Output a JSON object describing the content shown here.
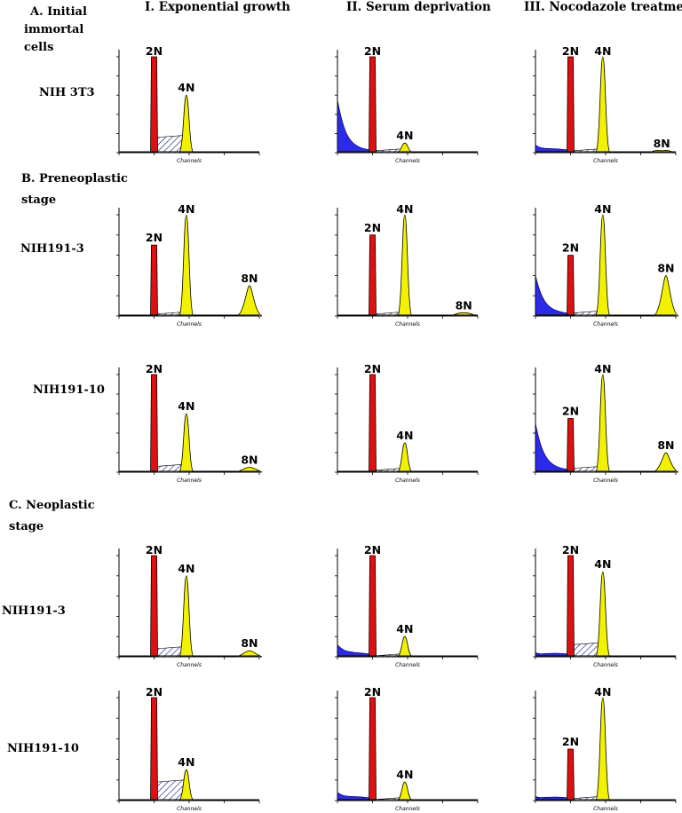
{
  "column_headers": [
    "I. Exponential growth",
    "II. Serum deprivation",
    "III. Nocodazole treatmen"
  ],
  "sections": [
    {
      "lines": [
        "A. Initial",
        "immortal",
        "cells"
      ]
    },
    {
      "lines": [
        "B. Preneoplastic",
        "stage"
      ]
    },
    {
      "lines": [
        "C. Neoplastic",
        "stage"
      ]
    }
  ],
  "row_labels": [
    "NIH 3T3",
    "NIH191-3",
    "NIH191-10",
    "NIH191-3",
    "NIH191-10"
  ],
  "axis_label": "Channels",
  "colors": {
    "2N": "#e01010",
    "4N": "#f2f200",
    "8N": "#f2f200",
    "debris": "#2a2ae8",
    "sphase": "#1a1a8a",
    "outline": "#000000"
  },
  "chart_data": [
    {
      "type": "area",
      "row": 0,
      "col": 0,
      "peaks": [
        {
          "label": "2N",
          "pos": 0.25,
          "height": 1.0
        },
        {
          "label": "4N",
          "pos": 0.48,
          "height": 0.6
        }
      ],
      "debris": 0,
      "sphase": 0.16
    },
    {
      "type": "area",
      "row": 0,
      "col": 1,
      "peaks": [
        {
          "label": "2N",
          "pos": 0.25,
          "height": 1.0
        },
        {
          "label": "4N",
          "pos": 0.48,
          "height": 0.1
        }
      ],
      "debris": 0.55,
      "sphase": 0.02
    },
    {
      "type": "area",
      "row": 0,
      "col": 2,
      "peaks": [
        {
          "label": "2N",
          "pos": 0.25,
          "height": 1.0
        },
        {
          "label": "4N",
          "pos": 0.48,
          "height": 1.0
        },
        {
          "label": "8N",
          "pos": 0.9,
          "height": 0.02
        }
      ],
      "debris": 0.08,
      "sphase": 0.02
    },
    {
      "type": "area",
      "row": 1,
      "col": 0,
      "peaks": [
        {
          "label": "2N",
          "pos": 0.25,
          "height": 0.7
        },
        {
          "label": "4N",
          "pos": 0.48,
          "height": 1.0
        },
        {
          "label": "8N",
          "pos": 0.93,
          "height": 0.3
        }
      ],
      "debris": 0,
      "sphase": 0.02
    },
    {
      "type": "area",
      "row": 1,
      "col": 1,
      "peaks": [
        {
          "label": "2N",
          "pos": 0.25,
          "height": 0.8
        },
        {
          "label": "4N",
          "pos": 0.48,
          "height": 1.0
        },
        {
          "label": "8N",
          "pos": 0.9,
          "height": 0.03
        }
      ],
      "debris": 0,
      "sphase": 0.02
    },
    {
      "type": "area",
      "row": 1,
      "col": 2,
      "peaks": [
        {
          "label": "2N",
          "pos": 0.25,
          "height": 0.6
        },
        {
          "label": "4N",
          "pos": 0.48,
          "height": 1.0
        },
        {
          "label": "8N",
          "pos": 0.93,
          "height": 0.4
        }
      ],
      "debris": 0.4,
      "sphase": 0.03
    },
    {
      "type": "area",
      "row": 2,
      "col": 0,
      "peaks": [
        {
          "label": "2N",
          "pos": 0.25,
          "height": 1.0
        },
        {
          "label": "4N",
          "pos": 0.48,
          "height": 0.6
        },
        {
          "label": "8N",
          "pos": 0.93,
          "height": 0.05
        }
      ],
      "debris": 0,
      "sphase": 0.06
    },
    {
      "type": "area",
      "row": 2,
      "col": 1,
      "peaks": [
        {
          "label": "2N",
          "pos": 0.25,
          "height": 1.0
        },
        {
          "label": "4N",
          "pos": 0.48,
          "height": 0.3
        }
      ],
      "debris": 0,
      "sphase": 0.02
    },
    {
      "type": "area",
      "row": 2,
      "col": 2,
      "peaks": [
        {
          "label": "2N",
          "pos": 0.25,
          "height": 0.55
        },
        {
          "label": "4N",
          "pos": 0.48,
          "height": 1.0
        },
        {
          "label": "8N",
          "pos": 0.93,
          "height": 0.2
        }
      ],
      "debris": 0.5,
      "sphase": 0.04
    },
    {
      "type": "area",
      "row": 3,
      "col": 0,
      "peaks": [
        {
          "label": "2N",
          "pos": 0.25,
          "height": 1.0
        },
        {
          "label": "4N",
          "pos": 0.48,
          "height": 0.8
        },
        {
          "label": "8N",
          "pos": 0.93,
          "height": 0.06
        }
      ],
      "debris": 0,
      "sphase": 0.08
    },
    {
      "type": "area",
      "row": 3,
      "col": 1,
      "peaks": [
        {
          "label": "2N",
          "pos": 0.25,
          "height": 1.0
        },
        {
          "label": "4N",
          "pos": 0.48,
          "height": 0.2
        }
      ],
      "debris": 0.12,
      "sphase": 0.01
    },
    {
      "type": "area",
      "row": 3,
      "col": 2,
      "peaks": [
        {
          "label": "2N",
          "pos": 0.25,
          "height": 1.0
        },
        {
          "label": "4N",
          "pos": 0.48,
          "height": 0.84
        }
      ],
      "debris": 0.04,
      "sphase": 0.12
    },
    {
      "type": "area",
      "row": 4,
      "col": 0,
      "peaks": [
        {
          "label": "2N",
          "pos": 0.25,
          "height": 1.0
        },
        {
          "label": "4N",
          "pos": 0.48,
          "height": 0.3
        }
      ],
      "debris": 0,
      "sphase": 0.18
    },
    {
      "type": "area",
      "row": 4,
      "col": 1,
      "peaks": [
        {
          "label": "2N",
          "pos": 0.25,
          "height": 1.0
        },
        {
          "label": "4N",
          "pos": 0.48,
          "height": 0.18
        }
      ],
      "debris": 0.08,
      "sphase": 0.01
    },
    {
      "type": "area",
      "row": 4,
      "col": 2,
      "peaks": [
        {
          "label": "2N",
          "pos": 0.25,
          "height": 0.5
        },
        {
          "label": "4N",
          "pos": 0.48,
          "height": 1.0
        }
      ],
      "debris": 0.04,
      "sphase": 0.02
    }
  ]
}
